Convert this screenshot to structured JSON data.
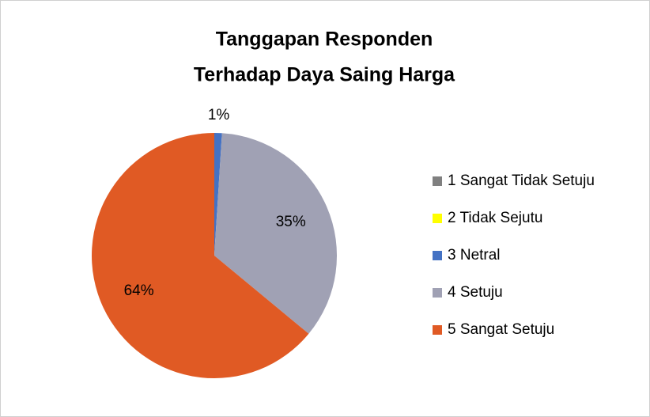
{
  "chart_data": {
    "type": "pie",
    "title": [
      "Tanggapan Responden",
      "Terhadap Daya Saing Harga"
    ],
    "categories": [
      "1 Sangat Tidak Setuju",
      "2 Tidak Sejutu",
      "3 Netral",
      "4 Setuju",
      "5 Sangat Setuju"
    ],
    "values": [
      0,
      0,
      1,
      35,
      64
    ],
    "value_labels": [
      null,
      null,
      "1%",
      "35%",
      "64%"
    ],
    "colors": [
      "#808080",
      "#ffff00",
      "#4472c4",
      "#a0a1b4",
      "#e05a24"
    ],
    "legend": "right"
  }
}
